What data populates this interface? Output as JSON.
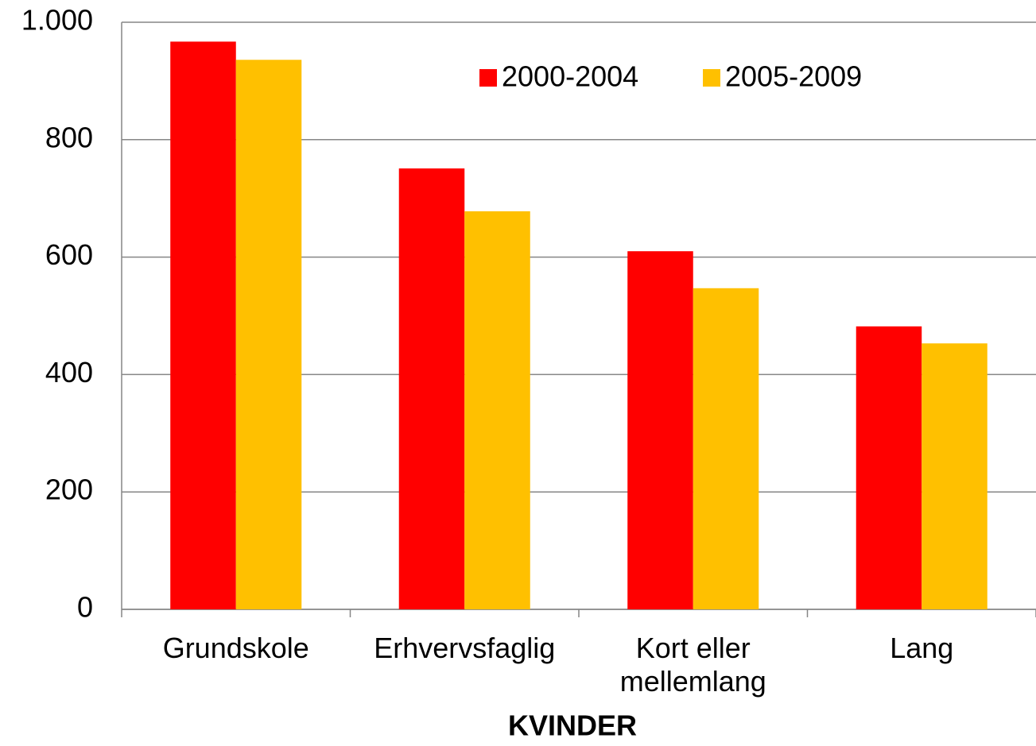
{
  "chart_data": {
    "type": "bar",
    "x_label": "KVINDER",
    "categories": [
      "Grundskole",
      "Erhvervsfaglig",
      "Kort eller mellemlang",
      "Lang"
    ],
    "series": [
      {
        "name": "2000-2004",
        "color": "#ff0000",
        "values": [
          967,
          751,
          610,
          482
        ]
      },
      {
        "name": "2005-2009",
        "color": "#ffc000",
        "values": [
          936,
          678,
          547,
          453
        ]
      }
    ],
    "ylim": [
      0,
      1000
    ],
    "yticks": [
      0,
      200,
      400,
      600,
      800,
      {
        "value": 1000,
        "label": "1.000"
      }
    ],
    "grid": true,
    "legend": "top"
  }
}
